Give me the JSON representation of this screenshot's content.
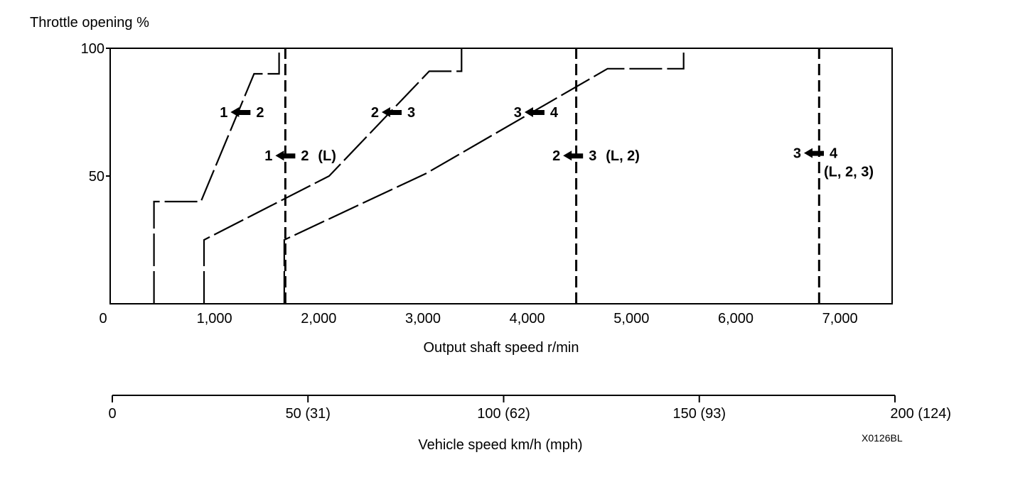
{
  "chart_data": {
    "type": "line",
    "y_title": "Throttle opening %",
    "x_title": "Output shaft speed r/min",
    "xlim": [
      0,
      7500
    ],
    "ylim": [
      0,
      100
    ],
    "x_ticks": [
      {
        "value": 0,
        "label": "0"
      },
      {
        "value": 1000,
        "label": "1,000"
      },
      {
        "value": 2000,
        "label": "2,000"
      },
      {
        "value": 3000,
        "label": "3,000"
      },
      {
        "value": 4000,
        "label": "4,000"
      },
      {
        "value": 5000,
        "label": "5,000"
      },
      {
        "value": 6000,
        "label": "6,000"
      },
      {
        "value": 7000,
        "label": "7,000"
      }
    ],
    "y_ticks": [
      {
        "value": 50,
        "label": "50"
      },
      {
        "value": 100,
        "label": "100"
      }
    ],
    "series": [
      {
        "id": "upshift-1-2",
        "style": "long-dash",
        "points": [
          [
            420,
            0
          ],
          [
            420,
            40
          ],
          [
            870,
            40
          ],
          [
            1380,
            90
          ],
          [
            1620,
            90
          ],
          [
            1620,
            100
          ]
        ]
      },
      {
        "id": "upshift-2-3",
        "style": "long-dash",
        "points": [
          [
            900,
            0
          ],
          [
            900,
            25
          ],
          [
            2100,
            50
          ],
          [
            3060,
            91
          ],
          [
            3370,
            91
          ],
          [
            3370,
            100
          ]
        ]
      },
      {
        "id": "upshift-3-4",
        "style": "long-dash",
        "points": [
          [
            1670,
            0
          ],
          [
            1670,
            25
          ],
          [
            3030,
            51
          ],
          [
            4770,
            92
          ],
          [
            5500,
            92
          ],
          [
            5500,
            100
          ]
        ]
      },
      {
        "id": "limit-1-2-L",
        "style": "dash",
        "points": [
          [
            1680,
            0
          ],
          [
            1680,
            100
          ]
        ]
      },
      {
        "id": "limit-2-3-L2",
        "style": "dash",
        "points": [
          [
            4470,
            0
          ],
          [
            4470,
            100
          ]
        ]
      },
      {
        "id": "limit-3-4-L23",
        "style": "dash",
        "points": [
          [
            6800,
            0
          ],
          [
            6800,
            100
          ]
        ]
      }
    ],
    "annotations": [
      {
        "id": "shift-1-2",
        "from": "1",
        "to": "2",
        "note": "",
        "x": 1250,
        "y": 75
      },
      {
        "id": "shift-1-2-L",
        "from": "1",
        "to": "2",
        "note": "(L)",
        "x": 1680,
        "y": 58
      },
      {
        "id": "shift-2-3",
        "from": "2",
        "to": "3",
        "note": "",
        "x": 2700,
        "y": 75
      },
      {
        "id": "shift-3-4",
        "from": "3",
        "to": "4",
        "note": "",
        "x": 4070,
        "y": 75
      },
      {
        "id": "shift-2-3-L2",
        "from": "2",
        "to": "3",
        "note": "(L, 2)",
        "x": 4440,
        "y": 58
      },
      {
        "id": "shift-3-4-L23",
        "from": "3",
        "to": "4",
        "note": "(L, 2, 3)",
        "x": 6750,
        "y": 59
      }
    ],
    "secondary_axis": {
      "title": "Vehicle speed km/h (mph)",
      "ticks": [
        {
          "value": 0,
          "label": "0"
        },
        {
          "value": 50,
          "label": "50 (31)"
        },
        {
          "value": 100,
          "label": "100 (62)"
        },
        {
          "value": 150,
          "label": "150 (93)"
        },
        {
          "value": 200,
          "label": "200 (124)"
        }
      ],
      "range": [
        0,
        200
      ]
    },
    "figure_code": "X0126BL"
  }
}
